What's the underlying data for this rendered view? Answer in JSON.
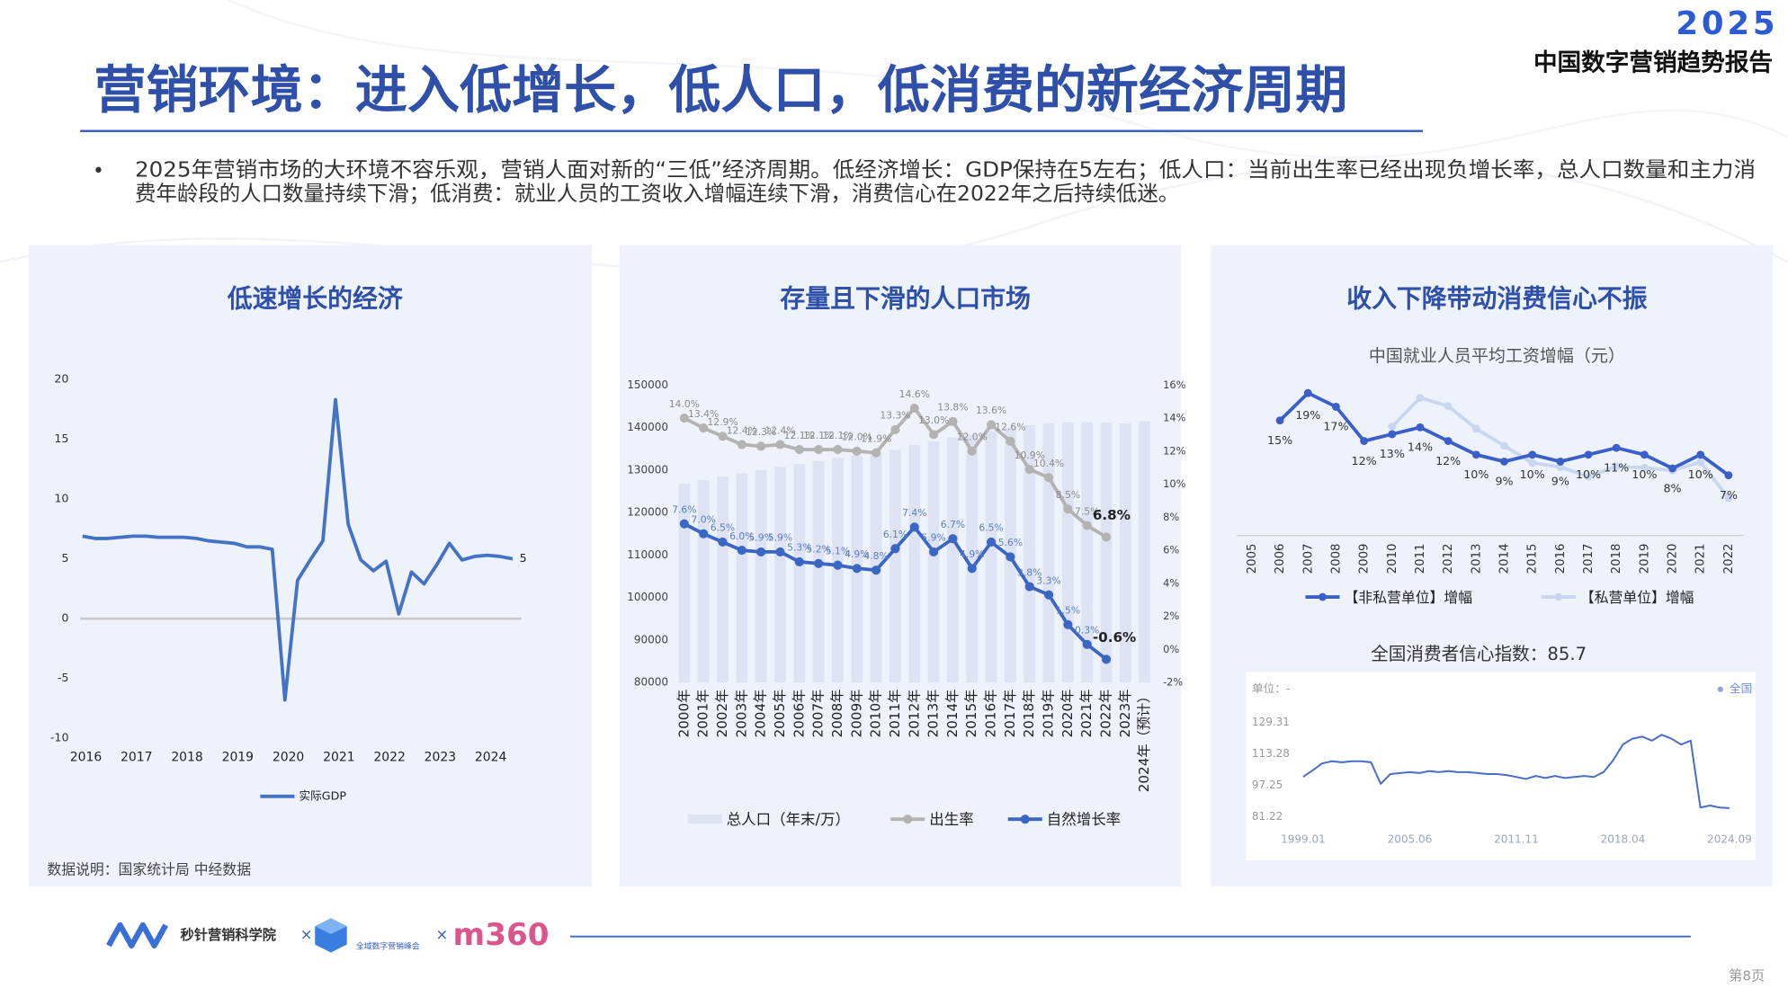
{
  "header": {
    "logo_year": "2025",
    "report": "中国数字营销趋势报告",
    "title": "营销环境：进入低增长，低人口，低消费的新经济周期",
    "text_lines": [
      "2025年营销市场的大环境不容乐观，营销人面对新的“三低”经济周期。低经济增长：GDP保持在5左右；低人口：当前出生率已经出现负增长率，总人口数量和主力消",
      "费年龄段的人口数量持续下滑；低消费：就业人员的工资收入增幅连续下滑，消费信心在2022年之后持续低迷。"
    ]
  },
  "chart_data": [
    {
      "type": "line",
      "title": "低速增长的经济",
      "categories": [
        "2016",
        null,
        null,
        null,
        "2017",
        null,
        null,
        null,
        "2018",
        null,
        null,
        null,
        "2019",
        null,
        null,
        null,
        "2020",
        null,
        null,
        null,
        "2021",
        null,
        null,
        null,
        "2022",
        null,
        null,
        null,
        "2023",
        null,
        null,
        null,
        "2024",
        null,
        null
      ],
      "series": [
        {
          "name": "实际GDP",
          "color": "#4472c4",
          "values": [
            6.9,
            6.7,
            6.7,
            6.8,
            6.9,
            6.9,
            6.8,
            6.8,
            6.8,
            6.7,
            6.5,
            6.4,
            6.3,
            6.0,
            6.0,
            5.8,
            -6.8,
            3.2,
            4.9,
            6.5,
            18.3,
            7.9,
            4.9,
            4.0,
            4.8,
            0.4,
            3.9,
            2.9,
            4.5,
            6.3,
            4.9,
            5.2,
            5.3,
            5.2,
            5
          ]
        }
      ],
      "ylim": [
        -10,
        20
      ],
      "yticks": [
        -10,
        -5,
        0,
        5,
        10,
        15,
        20
      ],
      "note": "数据说明：国家统计局  中经数据"
    },
    {
      "type": "bar",
      "title": "存量且下滑的人口市场",
      "categories": [
        "2000年",
        "2001年",
        "2002年",
        "2003年",
        "2004年",
        "2005年",
        "2006年",
        "2007年",
        "2008年",
        "2009年",
        "2010年",
        "2011年",
        "2012年",
        "2013年",
        "2014年",
        "2015年",
        "2016年",
        "2017年",
        "2018年",
        "2019年",
        "2020年",
        "2021年",
        "2022年",
        "2023年",
        "2024年（预计）"
      ],
      "series": [
        {
          "name": "总人口（年末/万）",
          "type": "bar",
          "color": "#dde3f2",
          "values": [
            126743,
            127627,
            128453,
            129227,
            129988,
            130756,
            131448,
            132129,
            132802,
            133450,
            134091,
            134735,
            135922,
            136726,
            137646,
            138326,
            139232,
            140011,
            140541,
            141008,
            141212,
            141260,
            141175,
            140967,
            141500
          ]
        },
        {
          "name": "出生率",
          "type": "line",
          "axis": "y2",
          "color": "#b3b3b3",
          "values": [
            14.0,
            13.4,
            12.9,
            12.4,
            12.3,
            12.4,
            12.1,
            12.1,
            12.1,
            12.0,
            11.9,
            13.3,
            14.6,
            13.0,
            13.8,
            12.0,
            13.6,
            12.6,
            10.9,
            10.4,
            8.5,
            7.5,
            6.8,
            null,
            null
          ],
          "value_labels": [
            "14.0%",
            "13.4%",
            "12.9%",
            "12.4%",
            "12.3%",
            "12.4%",
            "12.1%",
            "12.1%",
            "12.1%",
            "12.0%",
            "11.9%",
            "13.3%",
            "14.6%",
            "13.0%",
            "13.8%",
            "12.0%",
            "13.6%",
            "12.6%",
            "10.9%",
            "10.4%",
            "8.5%",
            "7.5%",
            "6.8%",
            null,
            null
          ]
        },
        {
          "name": "自然增长率",
          "type": "line",
          "axis": "y2",
          "color": "#3a66c4",
          "values": [
            7.6,
            7.0,
            6.5,
            6.0,
            5.9,
            5.9,
            5.3,
            5.2,
            5.1,
            4.9,
            4.8,
            6.1,
            7.4,
            5.9,
            6.7,
            4.9,
            6.5,
            5.6,
            3.8,
            3.3,
            1.5,
            0.3,
            -0.6,
            null,
            null
          ],
          "value_labels": [
            "7.6%",
            "7.0%",
            "6.5%",
            "6.0%",
            "5.9%",
            "5.9%",
            "5.3%",
            "5.2%",
            "5.1%",
            "4.9%",
            "4.8%",
            "6.1%",
            "7.4%",
            "5.9%",
            "6.7%",
            "4.9%",
            "6.5%",
            "5.6%",
            "3.8%",
            "3.3%",
            "1.5%",
            "0.3%",
            "-0.6%",
            null,
            null
          ]
        }
      ],
      "ylim": [
        80000,
        150000
      ],
      "yticks": [
        80000,
        90000,
        100000,
        110000,
        120000,
        130000,
        140000,
        150000
      ],
      "y2lim": [
        -2,
        16
      ],
      "y2ticks": [
        {
          "value": -2,
          "label": "-2%"
        },
        {
          "value": 0,
          "label": "0%"
        },
        {
          "value": 2,
          "label": "2%"
        },
        {
          "value": 4,
          "label": "4%"
        },
        {
          "value": 6,
          "label": "6%"
        },
        {
          "value": 8,
          "label": "8%"
        },
        {
          "value": 10,
          "label": "10%"
        },
        {
          "value": 12,
          "label": "12%"
        },
        {
          "value": 14,
          "label": "14%"
        },
        {
          "value": 16,
          "label": "16%"
        }
      ]
    },
    {
      "type": "line",
      "title": "收入下降带动消费信心不振",
      "subtitle": "中国就业人员平均工资增幅（元）",
      "categories": [
        "2005",
        "2006",
        "2007",
        "2008",
        "2009",
        "2010",
        "2011",
        "2012",
        "2013",
        "2014",
        "2015",
        "2016",
        "2017",
        "2018",
        "2019",
        "2020",
        "2021",
        "2022"
      ],
      "series": [
        {
          "name": "【非私营单位】增幅",
          "color": "#3a5fc8",
          "values": [
            null,
            15,
            19,
            17,
            12,
            13,
            14,
            12,
            10,
            9,
            10,
            9,
            10,
            11,
            10,
            8,
            10,
            7
          ],
          "value_labels": [
            null,
            "15%",
            "19%",
            "17%",
            "12%",
            "13%",
            "14%",
            "12%",
            "10%",
            "9%",
            "10%",
            "9%",
            "10%",
            "11%",
            "10%",
            "8%",
            "10%",
            "7%"
          ]
        },
        {
          "name": "【私营单位】增幅",
          "color": "#c9d6ef",
          "values": [
            null,
            null,
            null,
            null,
            null,
            14.1,
            18.3,
            17.1,
            13.8,
            11.3,
            8.8,
            8.2,
            6.8,
            8.3,
            8.1,
            7.7,
            8.9,
            3.7
          ]
        }
      ]
    },
    {
      "type": "line",
      "title": "全国消费者信心指数：85.7",
      "unit": "单位：-",
      "categories": [
        "1999.01",
        null,
        null,
        null,
        null,
        null,
        null,
        null,
        null,
        null,
        null,
        "2005.06",
        null,
        null,
        null,
        null,
        null,
        null,
        null,
        null,
        null,
        null,
        "2011.11",
        null,
        null,
        null,
        null,
        null,
        null,
        null,
        null,
        null,
        null,
        "2018.04",
        null,
        null,
        null,
        null,
        null,
        null,
        null,
        null,
        null,
        null,
        "2024.09"
      ],
      "series": [
        {
          "name": "全国",
          "color": "#4a6fc9",
          "values": [
            101.6,
            105,
            108.5,
            109.5,
            109,
            109.5,
            109.5,
            109,
            98,
            103,
            103.5,
            104,
            103.5,
            104.5,
            104,
            104.5,
            104,
            104,
            103.5,
            103,
            103,
            102.5,
            101.5,
            100.5,
            102,
            101,
            102,
            101,
            101.5,
            102,
            101.5,
            104,
            110,
            118,
            121,
            122,
            120,
            123,
            121,
            118,
            120,
            86,
            87,
            86,
            85.7
          ]
        }
      ],
      "ylim": [
        81.22,
        129.31
      ],
      "yticks": [
        81.22,
        97.25,
        113.28,
        129.31
      ]
    }
  ],
  "footer": {
    "brand1": "秒针营销科学院",
    "times": "×",
    "brand2": "全域数字营销峰会",
    "brand3": "m360",
    "page": "第8页"
  }
}
